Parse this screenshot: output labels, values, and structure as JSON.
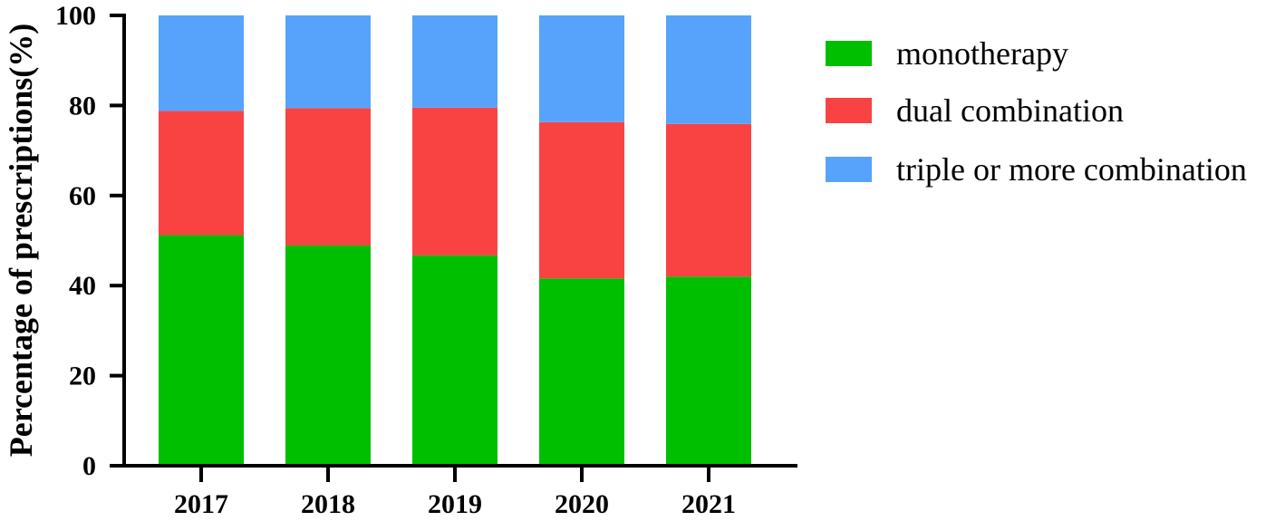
{
  "chart_data": {
    "type": "bar",
    "stacked": true,
    "categories": [
      "2017",
      "2018",
      "2019",
      "2020",
      "2021"
    ],
    "series": [
      {
        "name": "monotherapy",
        "color": "#00bf00",
        "values": [
          51.2,
          48.9,
          46.7,
          41.6,
          42.0
        ]
      },
      {
        "name": "dual combination",
        "color": "#f94343",
        "values": [
          27.6,
          30.5,
          32.8,
          34.7,
          33.9
        ]
      },
      {
        "name": "triple or more combination",
        "color": "#57a3fb",
        "values": [
          21.2,
          20.6,
          20.5,
          23.7,
          24.1
        ]
      }
    ],
    "title": "",
    "xlabel": "",
    "ylabel": "Percentage of prescriptions(%)",
    "ylim": [
      0,
      100
    ],
    "yticks": [
      0,
      20,
      40,
      60,
      80,
      100
    ],
    "grid": false,
    "legend_position": "right"
  }
}
